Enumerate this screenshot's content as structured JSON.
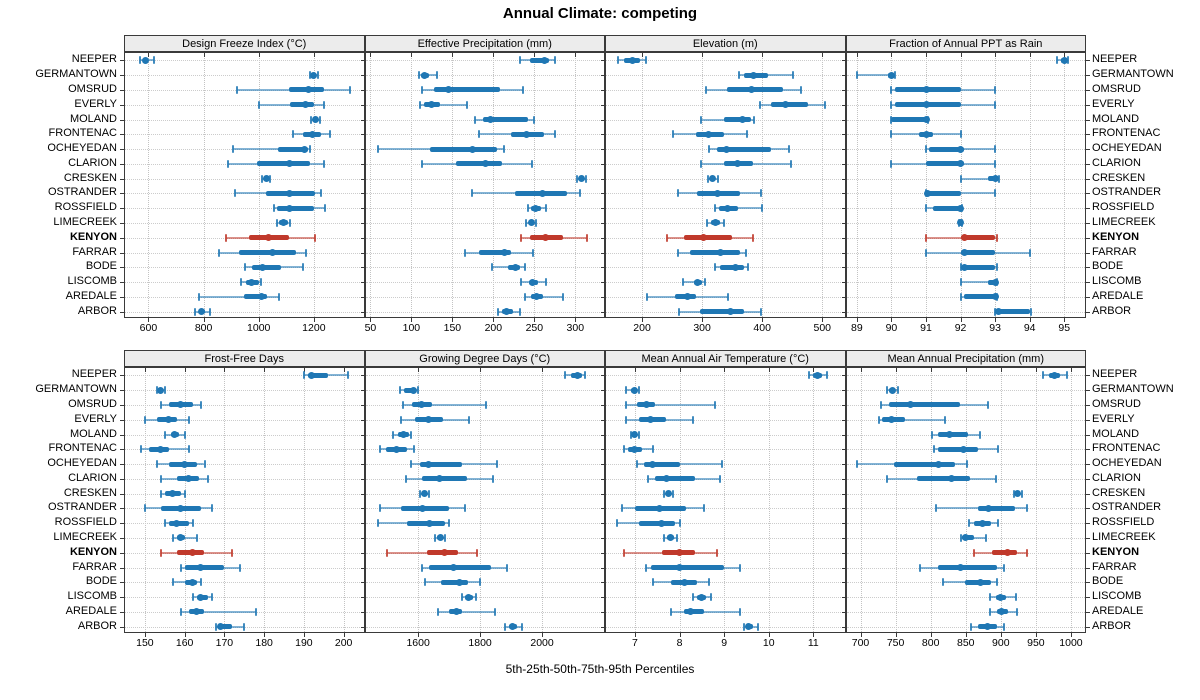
{
  "title": "Annual Climate: competing",
  "caption": "5th-25th-50th-75th-95th Percentiles",
  "colors": {
    "series": "#1f77b4",
    "highlight": "#c0392b",
    "strip_bg": "#ececec",
    "panel_border": "#3a3a3a",
    "grid": "#c3c3c3"
  },
  "sites": [
    "NEEPER",
    "GERMANTOWN",
    "OMSRUD",
    "EVERLY",
    "MOLAND",
    "FRONTENAC",
    "OCHEYEDAN",
    "CLARION",
    "CRESKEN",
    "OSTRANDER",
    "ROSSFIELD",
    "LIMECREEK",
    "KENYON",
    "FARRAR",
    "BODE",
    "LISCOMB",
    "AREDALE",
    "ARBOR"
  ],
  "highlight_site": "KENYON",
  "chart_data": {
    "type": "dot-interval-trellis",
    "percentiles": [
      5,
      25,
      50,
      75,
      95
    ],
    "layout": {
      "rows": 2,
      "cols": 4,
      "site_order": "top-to-bottom matches sites[]"
    },
    "panels": [
      {
        "title": "Design Freeze Index (°C)",
        "grid_row": 0,
        "grid_col": 0,
        "xlim": [
          515,
          1380
        ],
        "ticks": [
          600,
          800,
          1000,
          1200
        ],
        "values": [
          [
            570,
            580,
            590,
            600,
            620
          ],
          [
            1185,
            1195,
            1200,
            1205,
            1215
          ],
          [
            920,
            1110,
            1180,
            1235,
            1330
          ],
          [
            1000,
            1115,
            1170,
            1200,
            1235
          ],
          [
            1190,
            1198,
            1207,
            1215,
            1223
          ],
          [
            1125,
            1160,
            1195,
            1225,
            1260
          ],
          [
            905,
            1070,
            1165,
            1180,
            1185
          ],
          [
            890,
            995,
            1110,
            1185,
            1235
          ],
          [
            1013,
            1020,
            1027,
            1035,
            1042
          ],
          [
            915,
            1025,
            1110,
            1205,
            1225
          ],
          [
            1055,
            1065,
            1110,
            1200,
            1240
          ],
          [
            1065,
            1075,
            1090,
            1105,
            1115
          ],
          [
            880,
            965,
            1035,
            1110,
            1205
          ],
          [
            855,
            930,
            1050,
            1135,
            1170
          ],
          [
            950,
            975,
            1015,
            1080,
            1160
          ],
          [
            935,
            955,
            975,
            1000,
            1010
          ],
          [
            785,
            945,
            1010,
            1030,
            1075
          ],
          [
            770,
            782,
            792,
            805,
            825
          ]
        ]
      },
      {
        "title": "Effective Precipitation (mm)",
        "grid_row": 0,
        "grid_col": 1,
        "xlim": [
          44,
          335
        ],
        "ticks": [
          50,
          100,
          150,
          200,
          250,
          300
        ],
        "values": [
          [
            232,
            245,
            262,
            268,
            275
          ],
          [
            109,
            112,
            116,
            122,
            131
          ],
          [
            113,
            127,
            145,
            208,
            236
          ],
          [
            111,
            115,
            124,
            135,
            168
          ],
          [
            178,
            187,
            196,
            242,
            250
          ],
          [
            182,
            222,
            241,
            262,
            275
          ],
          [
            59,
            123,
            174,
            205,
            213
          ],
          [
            113,
            155,
            191,
            210,
            247
          ],
          [
            302,
            305,
            307,
            310,
            313
          ],
          [
            174,
            227,
            260,
            290,
            306
          ],
          [
            242,
            246,
            252,
            258,
            264
          ],
          [
            240,
            243,
            246,
            249,
            252
          ],
          [
            234,
            245,
            264,
            285,
            314
          ],
          [
            165,
            183,
            213,
            222,
            248
          ],
          [
            198,
            218,
            227,
            233,
            239
          ],
          [
            234,
            243,
            248,
            254,
            264
          ],
          [
            238,
            246,
            253,
            260,
            285
          ],
          [
            206,
            211,
            216,
            224,
            233
          ]
        ]
      },
      {
        "title": "Elevation (m)",
        "grid_row": 0,
        "grid_col": 2,
        "xlim": [
          140,
          537
        ],
        "ticks": [
          200,
          300,
          400,
          500
        ],
        "values": [
          [
            160,
            170,
            184,
            196,
            207
          ],
          [
            361,
            369,
            386,
            410,
            452
          ],
          [
            307,
            341,
            382,
            435,
            465
          ],
          [
            396,
            415,
            439,
            476,
            504
          ],
          [
            298,
            337,
            367,
            381,
            387
          ],
          [
            252,
            289,
            311,
            337,
            374
          ],
          [
            312,
            325,
            341,
            415,
            445
          ],
          [
            298,
            336,
            359,
            385,
            448
          ],
          [
            310,
            314,
            318,
            322,
            326
          ],
          [
            260,
            292,
            325,
            363,
            398
          ],
          [
            321,
            328,
            343,
            360,
            400
          ],
          [
            308,
            315,
            323,
            330,
            336
          ],
          [
            241,
            270,
            303,
            349,
            385
          ],
          [
            260,
            280,
            330,
            363,
            373
          ],
          [
            322,
            330,
            355,
            370,
            376
          ],
          [
            268,
            286,
            293,
            300,
            305
          ],
          [
            209,
            255,
            275,
            289,
            343
          ],
          [
            262,
            297,
            348,
            369,
            398
          ]
        ]
      },
      {
        "title": "Fraction of Annual PPT as Rain",
        "grid_row": 0,
        "grid_col": 3,
        "xlim": [
          88.7,
          95.6
        ],
        "ticks": [
          89,
          90,
          91,
          92,
          93,
          94,
          95
        ],
        "values": [
          [
            94.8,
            94.9,
            95.0,
            95.0,
            95.1
          ],
          [
            89.0,
            89.9,
            90.0,
            90.0,
            90.1
          ],
          [
            90.0,
            90.1,
            91.0,
            92.0,
            93.0
          ],
          [
            90.0,
            90.1,
            91.0,
            92.0,
            93.0
          ],
          [
            90.0,
            90.0,
            91.0,
            91.0,
            91.05
          ],
          [
            90.0,
            90.8,
            91.0,
            91.2,
            92.0
          ],
          [
            91.0,
            91.1,
            92.0,
            92.1,
            93.0
          ],
          [
            90.0,
            91.0,
            92.0,
            92.1,
            93.0
          ],
          [
            92.0,
            92.8,
            93.0,
            93.0,
            93.1
          ],
          [
            91.0,
            91.0,
            91.05,
            92.0,
            93.0
          ],
          [
            91.0,
            91.2,
            92.0,
            92.0,
            92.05
          ],
          [
            91.95,
            92.0,
            92.0,
            92.0,
            92.05
          ],
          [
            91.0,
            92.0,
            92.1,
            93.0,
            93.05
          ],
          [
            91.0,
            92.0,
            92.1,
            93.0,
            94.0
          ],
          [
            92.0,
            92.0,
            92.1,
            93.0,
            93.05
          ],
          [
            92.0,
            92.8,
            93.0,
            93.0,
            93.05
          ],
          [
            92.0,
            92.1,
            93.0,
            93.0,
            93.05
          ],
          [
            93.0,
            93.0,
            93.1,
            94.0,
            94.05
          ]
        ]
      },
      {
        "title": "Frost-Free Days",
        "grid_row": 1,
        "grid_col": 0,
        "xlim": [
          145,
          205
        ],
        "ticks": [
          150,
          160,
          170,
          180,
          190,
          200
        ],
        "values": [
          [
            190,
            191,
            192,
            196,
            201
          ],
          [
            153,
            153.5,
            154,
            154.5,
            155
          ],
          [
            154,
            156,
            159,
            162,
            164
          ],
          [
            150,
            153,
            156,
            158,
            161
          ],
          [
            155,
            156.5,
            157.5,
            158.5,
            160
          ],
          [
            149,
            151,
            154,
            156,
            161
          ],
          [
            153,
            156,
            160,
            163,
            165
          ],
          [
            154,
            158,
            161,
            163.5,
            166
          ],
          [
            154,
            155,
            157,
            159,
            160
          ],
          [
            150,
            154,
            159,
            164,
            167
          ],
          [
            155,
            156,
            158,
            161,
            162
          ],
          [
            157,
            158,
            159,
            160,
            163
          ],
          [
            154,
            158,
            162,
            165,
            172
          ],
          [
            159,
            160,
            164,
            170,
            174
          ],
          [
            157,
            160,
            162,
            163,
            164
          ],
          [
            162,
            163,
            164,
            166,
            167
          ],
          [
            159,
            161,
            163,
            165,
            178
          ],
          [
            168,
            168.5,
            169,
            172,
            175
          ]
        ]
      },
      {
        "title": "Growing Degree Days (°C)",
        "grid_row": 1,
        "grid_col": 1,
        "xlim": [
          1430,
          2200
        ],
        "ticks": [
          1600,
          1800,
          2000
        ],
        "values": [
          [
            2075,
            2095,
            2115,
            2130,
            2140
          ],
          [
            1540,
            1555,
            1585,
            1593,
            1600
          ],
          [
            1550,
            1580,
            1612,
            1645,
            1820
          ],
          [
            1546,
            1590,
            1632,
            1680,
            1763
          ],
          [
            1520,
            1535,
            1553,
            1570,
            1578
          ],
          [
            1478,
            1497,
            1530,
            1565,
            1585
          ],
          [
            1578,
            1605,
            1634,
            1740,
            1853
          ],
          [
            1560,
            1613,
            1668,
            1757,
            1843
          ],
          [
            1605,
            1612,
            1620,
            1628,
            1636
          ],
          [
            1478,
            1543,
            1615,
            1700,
            1751
          ],
          [
            1469,
            1565,
            1637,
            1687,
            1700
          ],
          [
            1653,
            1660,
            1671,
            1680,
            1687
          ],
          [
            1498,
            1629,
            1684,
            1730,
            1791
          ],
          [
            1613,
            1634,
            1714,
            1836,
            1887
          ],
          [
            1623,
            1673,
            1732,
            1762,
            1800
          ],
          [
            1740,
            1752,
            1764,
            1776,
            1788
          ],
          [
            1664,
            1700,
            1724,
            1740,
            1847
          ],
          [
            1879,
            1892,
            1905,
            1920,
            1934
          ]
        ]
      },
      {
        "title": "Mean Annual Air Temperature (°C)",
        "grid_row": 1,
        "grid_col": 2,
        "xlim": [
          6.35,
          11.7
        ],
        "ticks": [
          7,
          8,
          9,
          10,
          11
        ],
        "values": [
          [
            10.9,
            11.0,
            11.1,
            11.2,
            11.3
          ],
          [
            6.8,
            6.9,
            7.0,
            7.05,
            7.1
          ],
          [
            6.8,
            7.05,
            7.25,
            7.45,
            8.8
          ],
          [
            6.8,
            7.1,
            7.35,
            7.7,
            8.3
          ],
          [
            6.9,
            6.95,
            7.0,
            7.05,
            7.1
          ],
          [
            6.75,
            6.85,
            7.0,
            7.15,
            7.4
          ],
          [
            7.05,
            7.2,
            7.4,
            8.0,
            8.95
          ],
          [
            7.3,
            7.45,
            7.7,
            8.35,
            8.9
          ],
          [
            7.65,
            7.7,
            7.75,
            7.8,
            7.85
          ],
          [
            6.7,
            7.0,
            7.55,
            8.15,
            8.55
          ],
          [
            6.6,
            7.1,
            7.6,
            7.9,
            8.0
          ],
          [
            7.65,
            7.72,
            7.8,
            7.88,
            7.95
          ],
          [
            6.75,
            7.6,
            8.0,
            8.35,
            8.85
          ],
          [
            7.25,
            7.35,
            8.0,
            9.0,
            9.35
          ],
          [
            7.4,
            7.8,
            8.1,
            8.4,
            8.65
          ],
          [
            8.3,
            8.4,
            8.5,
            8.6,
            8.7
          ],
          [
            7.8,
            8.1,
            8.25,
            8.55,
            9.35
          ],
          [
            9.45,
            9.5,
            9.55,
            9.65,
            9.75
          ]
        ]
      },
      {
        "title": "Mean Annual Precipitation (mm)",
        "grid_row": 1,
        "grid_col": 3,
        "xlim": [
          680,
          1020
        ],
        "ticks": [
          700,
          750,
          800,
          850,
          900,
          950,
          1000
        ],
        "values": [
          [
            960,
            968,
            976,
            985,
            995
          ],
          [
            738,
            741,
            745,
            749,
            753
          ],
          [
            729,
            741,
            771,
            842,
            882
          ],
          [
            726,
            731,
            744,
            764,
            820
          ],
          [
            802,
            811,
            827,
            853,
            870
          ],
          [
            805,
            811,
            847,
            868,
            896
          ],
          [
            695,
            748,
            811,
            834,
            852
          ],
          [
            738,
            780,
            829,
            856,
            893
          ],
          [
            919,
            921,
            924,
            927,
            930
          ],
          [
            808,
            868,
            882,
            920,
            937
          ],
          [
            855,
            862,
            874,
            886,
            896
          ],
          [
            843,
            845,
            849,
            862,
            879
          ],
          [
            862,
            888,
            909,
            923,
            938
          ],
          [
            785,
            810,
            843,
            895,
            905
          ],
          [
            817,
            849,
            871,
            886,
            894
          ],
          [
            885,
            893,
            900,
            908,
            921
          ],
          [
            885,
            894,
            901,
            910,
            923
          ],
          [
            858,
            867,
            881,
            895,
            904
          ]
        ]
      }
    ]
  }
}
